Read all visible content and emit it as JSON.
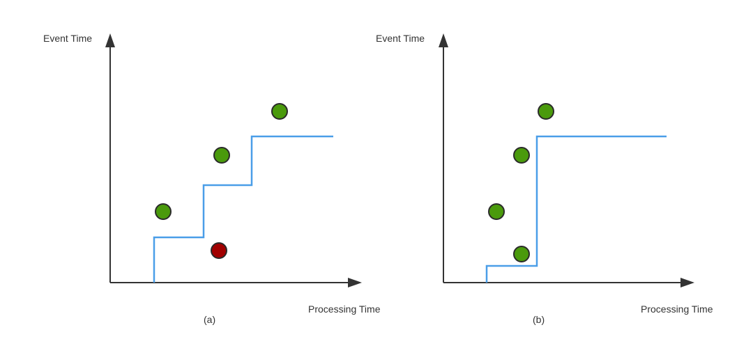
{
  "colors": {
    "axis": "#333333",
    "watermark": "#4a9ee8",
    "on_time_event": "#4a9a0c",
    "late_event": "#a10000"
  },
  "panels": [
    {
      "id": "a",
      "caption": "(a)",
      "y_axis_label": "Event Time",
      "x_axis_label": "Processing Time",
      "events": [
        {
          "status": "on-time"
        },
        {
          "status": "on-time"
        },
        {
          "status": "on-time"
        },
        {
          "status": "late"
        }
      ]
    },
    {
      "id": "b",
      "caption": "(b)",
      "y_axis_label": "Event Time",
      "x_axis_label": "Processing Time",
      "events": [
        {
          "status": "on-time"
        },
        {
          "status": "on-time"
        },
        {
          "status": "on-time"
        },
        {
          "status": "on-time"
        }
      ]
    }
  ]
}
